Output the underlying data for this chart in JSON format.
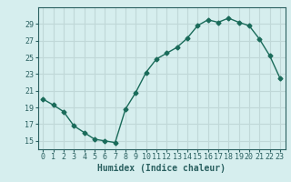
{
  "x": [
    0,
    1,
    2,
    3,
    4,
    5,
    6,
    7,
    8,
    9,
    10,
    11,
    12,
    13,
    14,
    15,
    16,
    17,
    18,
    19,
    20,
    21,
    22,
    23
  ],
  "y": [
    20.0,
    19.3,
    18.5,
    16.8,
    16.0,
    15.2,
    15.0,
    14.8,
    18.8,
    20.8,
    23.2,
    24.8,
    25.5,
    26.2,
    27.3,
    28.8,
    29.5,
    29.2,
    29.7,
    29.2,
    28.8,
    27.2,
    25.2,
    22.5
  ],
  "line_color": "#1a6b5a",
  "marker": "D",
  "marker_size": 2.5,
  "bg_color": "#d6eeee",
  "grid_color": "#c0d8d8",
  "axis_color": "#2a6060",
  "xlabel": "Humidex (Indice chaleur)",
  "ylabel": "",
  "ylim": [
    14,
    31
  ],
  "xlim": [
    -0.5,
    23.5
  ],
  "yticks": [
    15,
    17,
    19,
    21,
    23,
    25,
    27,
    29
  ],
  "xticks": [
    0,
    1,
    2,
    3,
    4,
    5,
    6,
    7,
    8,
    9,
    10,
    11,
    12,
    13,
    14,
    15,
    16,
    17,
    18,
    19,
    20,
    21,
    22,
    23
  ],
  "tick_fontsize": 6.0,
  "xlabel_fontsize": 7.0
}
